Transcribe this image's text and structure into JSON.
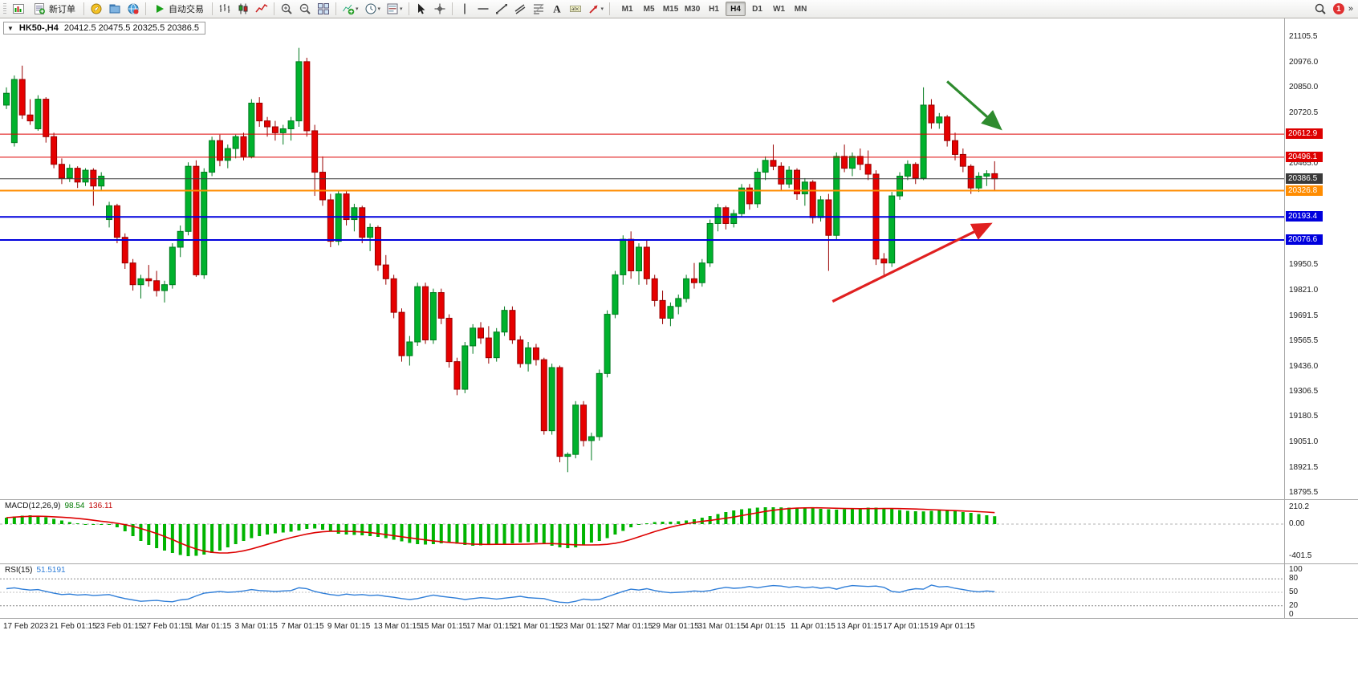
{
  "toolbar": {
    "new_order_label": "新订单",
    "autotrading_label": "自动交易",
    "timeframes": [
      "M1",
      "M5",
      "M15",
      "M30",
      "H1",
      "H4",
      "D1",
      "W1",
      "MN"
    ],
    "active_timeframe": "H4",
    "notification_count": "1",
    "overflow_chevron": "»",
    "icons": [
      "new-chart",
      "new-order",
      "metaeditor-compass",
      "profiles",
      "community-globe",
      "autotrading-play",
      "bar-chart",
      "candlestick-chart",
      "line-chart",
      "zoom-in",
      "zoom-out",
      "tile-windows",
      "indicators-list",
      "periods",
      "templates",
      "cursor",
      "crosshair",
      "vertical-line",
      "horizontal-line",
      "trendline",
      "equidistant-channel",
      "fibonacci-retracement",
      "text",
      "text-label",
      "arrow-tools",
      "search",
      "notifications"
    ]
  },
  "chart": {
    "collapse_marker": "▼",
    "symbol_label": "HK50-,H4",
    "ohlc": "20412.5 20475.5 20325.5 20386.5",
    "price_axis_ticks": [
      "21105.5",
      "20976.0",
      "20850.0",
      "20720.5",
      "20465.0",
      "19950.5",
      "19821.0",
      "19691.5",
      "19565.5",
      "19436.0",
      "19306.5",
      "19180.5",
      "19051.0",
      "18921.5",
      "18795.5"
    ],
    "lines": [
      {
        "label": "20612.9",
        "price": 20612.9,
        "color": "#dd0000",
        "width": 1
      },
      {
        "label": "20496.1",
        "price": 20496.1,
        "color": "#dd0000",
        "width": 1
      },
      {
        "label": "20386.5",
        "price": 20386.5,
        "color": "#3a3a3a",
        "width": 1
      },
      {
        "label": "20326.8",
        "price": 20326.8,
        "color": "#ff8c00",
        "width": 2
      },
      {
        "label": "20193.4",
        "price": 20193.4,
        "color": "#0000dd",
        "width": 2
      },
      {
        "label": "20076.6",
        "price": 20076.6,
        "color": "#0000dd",
        "width": 2
      }
    ],
    "arrows": [
      {
        "name": "green-resistance-arrow",
        "color": "#2e8b2e",
        "from": {
          "i": 119.0,
          "p": 20880
        },
        "to": {
          "i": 125.6,
          "p": 20645
        }
      },
      {
        "name": "red-trend-arrow",
        "color": "#e02020",
        "from": {
          "i": 104.5,
          "p": 19765
        },
        "to": {
          "i": 124.3,
          "p": 20155
        }
      }
    ],
    "candles": [
      [
        20760,
        20850,
        20740,
        20820
      ],
      [
        20570,
        20910,
        20550,
        20890
      ],
      [
        20890,
        20960,
        20690,
        20710
      ],
      [
        20710,
        20790,
        20660,
        20680
      ],
      [
        20640,
        20810,
        20630,
        20790
      ],
      [
        20790,
        20800,
        20570,
        20600
      ],
      [
        20600,
        20620,
        20440,
        20460
      ],
      [
        20460,
        20490,
        20360,
        20390
      ],
      [
        20390,
        20460,
        20370,
        20440
      ],
      [
        20440,
        20450,
        20340,
        20370
      ],
      [
        20370,
        20440,
        20350,
        20430
      ],
      [
        20430,
        20440,
        20250,
        20350
      ],
      [
        20350,
        20420,
        20330,
        20400
      ],
      [
        20180,
        20270,
        20140,
        20250
      ],
      [
        20250,
        20260,
        20060,
        20090
      ],
      [
        20090,
        20110,
        19930,
        19960
      ],
      [
        19960,
        19980,
        19820,
        19850
      ],
      [
        19850,
        19900,
        19780,
        19880
      ],
      [
        19880,
        19950,
        19840,
        19870
      ],
      [
        19870,
        19920,
        19790,
        19820
      ],
      [
        19820,
        19870,
        19760,
        19850
      ],
      [
        19850,
        20060,
        19830,
        20040
      ],
      [
        20040,
        20150,
        19990,
        20120
      ],
      [
        20120,
        20470,
        20100,
        20450
      ],
      [
        20450,
        20480,
        19890,
        19900
      ],
      [
        19900,
        20440,
        19880,
        20420
      ],
      [
        20420,
        20600,
        20400,
        20580
      ],
      [
        20580,
        20610,
        20450,
        20480
      ],
      [
        20480,
        20560,
        20440,
        20540
      ],
      [
        20540,
        20610,
        20490,
        20600
      ],
      [
        20600,
        20620,
        20480,
        20500
      ],
      [
        20500,
        20790,
        20490,
        20770
      ],
      [
        20770,
        20800,
        20650,
        20680
      ],
      [
        20680,
        20700,
        20600,
        20650
      ],
      [
        20650,
        20680,
        20580,
        20620
      ],
      [
        20620,
        20660,
        20560,
        20640
      ],
      [
        20640,
        20700,
        20580,
        20680
      ],
      [
        20680,
        21050,
        20650,
        20980
      ],
      [
        20980,
        21000,
        20600,
        20630
      ],
      [
        20630,
        20660,
        20300,
        20420
      ],
      [
        20420,
        20500,
        20250,
        20280
      ],
      [
        20280,
        20310,
        20040,
        20070
      ],
      [
        20070,
        20330,
        20050,
        20310
      ],
      [
        20310,
        20330,
        20150,
        20180
      ],
      [
        20180,
        20260,
        20120,
        20240
      ],
      [
        20240,
        20250,
        20060,
        20090
      ],
      [
        20090,
        20160,
        20020,
        20140
      ],
      [
        20140,
        20150,
        19920,
        19950
      ],
      [
        19950,
        20000,
        19850,
        19880
      ],
      [
        19880,
        19900,
        19680,
        19710
      ],
      [
        19710,
        19730,
        19460,
        19490
      ],
      [
        19490,
        19590,
        19440,
        19560
      ],
      [
        19560,
        19860,
        19540,
        19840
      ],
      [
        19840,
        19860,
        19550,
        19570
      ],
      [
        19570,
        19830,
        19550,
        19810
      ],
      [
        19810,
        19830,
        19650,
        19680
      ],
      [
        19680,
        19700,
        19430,
        19460
      ],
      [
        19460,
        19480,
        19290,
        19320
      ],
      [
        19320,
        19560,
        19300,
        19540
      ],
      [
        19540,
        19650,
        19500,
        19630
      ],
      [
        19630,
        19660,
        19550,
        19580
      ],
      [
        19580,
        19640,
        19450,
        19480
      ],
      [
        19480,
        19630,
        19460,
        19610
      ],
      [
        19610,
        19740,
        19590,
        19720
      ],
      [
        19720,
        19740,
        19550,
        19570
      ],
      [
        19570,
        19590,
        19430,
        19450
      ],
      [
        19450,
        19560,
        19410,
        19530
      ],
      [
        19530,
        19550,
        19440,
        19470
      ],
      [
        19470,
        19480,
        19090,
        19110
      ],
      [
        19110,
        19450,
        19090,
        19430
      ],
      [
        19430,
        19440,
        18950,
        18980
      ],
      [
        18980,
        19000,
        18900,
        18990
      ],
      [
        18990,
        19260,
        18970,
        19240
      ],
      [
        19240,
        19260,
        19030,
        19060
      ],
      [
        19060,
        19100,
        18960,
        19080
      ],
      [
        19080,
        19420,
        19060,
        19400
      ],
      [
        19400,
        19720,
        19380,
        19700
      ],
      [
        19700,
        19920,
        19680,
        19900
      ],
      [
        19900,
        20100,
        19850,
        20080
      ],
      [
        20080,
        20120,
        19880,
        19920
      ],
      [
        19920,
        20060,
        19850,
        20040
      ],
      [
        20040,
        20080,
        19850,
        19880
      ],
      [
        19880,
        19900,
        19740,
        19770
      ],
      [
        19770,
        19820,
        19650,
        19680
      ],
      [
        19680,
        19760,
        19640,
        19740
      ],
      [
        19740,
        19800,
        19700,
        19780
      ],
      [
        19780,
        19900,
        19760,
        19880
      ],
      [
        19880,
        19960,
        19830,
        19860
      ],
      [
        19860,
        19980,
        19840,
        19960
      ],
      [
        19960,
        20180,
        19940,
        20160
      ],
      [
        20160,
        20260,
        20120,
        20240
      ],
      [
        20240,
        20250,
        20130,
        20160
      ],
      [
        20160,
        20230,
        20140,
        20210
      ],
      [
        20210,
        20360,
        20190,
        20340
      ],
      [
        20340,
        20360,
        20230,
        20260
      ],
      [
        20260,
        20440,
        20240,
        20420
      ],
      [
        20420,
        20500,
        20380,
        20480
      ],
      [
        20480,
        20560,
        20430,
        20450
      ],
      [
        20450,
        20470,
        20330,
        20360
      ],
      [
        20360,
        20450,
        20340,
        20430
      ],
      [
        20430,
        20440,
        20280,
        20310
      ],
      [
        20310,
        20390,
        20250,
        20370
      ],
      [
        20370,
        20380,
        20160,
        20190
      ],
      [
        20190,
        20300,
        20170,
        20280
      ],
      [
        20280,
        20310,
        19920,
        20100
      ],
      [
        20100,
        20520,
        20080,
        20500
      ],
      [
        20500,
        20560,
        20420,
        20440
      ],
      [
        20440,
        20520,
        20400,
        20500
      ],
      [
        20500,
        20540,
        20430,
        20460
      ],
      [
        20460,
        20530,
        20380,
        20410
      ],
      [
        20410,
        20430,
        19950,
        19980
      ],
      [
        19980,
        20010,
        19900,
        19960
      ],
      [
        19960,
        20320,
        19940,
        20300
      ],
      [
        20300,
        20420,
        20280,
        20400
      ],
      [
        20400,
        20480,
        20380,
        20460
      ],
      [
        20460,
        20470,
        20360,
        20390
      ],
      [
        20390,
        20850,
        20380,
        20760
      ],
      [
        20760,
        20790,
        20640,
        20670
      ],
      [
        20670,
        20720,
        20640,
        20700
      ],
      [
        20700,
        20710,
        20550,
        20580
      ],
      [
        20580,
        20620,
        20480,
        20510
      ],
      [
        20510,
        20540,
        20420,
        20450
      ],
      [
        20450,
        20460,
        20310,
        20340
      ],
      [
        20340,
        20420,
        20320,
        20400
      ],
      [
        20400,
        20430,
        20350,
        20412
      ],
      [
        20412.5,
        20475.5,
        20325.5,
        20386.5
      ]
    ]
  },
  "macd": {
    "name": "MACD(12,26,9)",
    "value_main": "98.54",
    "value_signal": "136.11",
    "ticks": [
      "210.2",
      "0.00",
      "-401.5"
    ],
    "histogram": [
      80,
      95,
      105,
      110,
      100,
      85,
      65,
      45,
      25,
      10,
      0,
      -10,
      -5,
      0,
      -40,
      -90,
      -150,
      -210,
      -260,
      -300,
      -330,
      -360,
      -385,
      -400,
      -395,
      -380,
      -360,
      -330,
      -290,
      -250,
      -210,
      -175,
      -150,
      -130,
      -115,
      -105,
      -95,
      -80,
      -60,
      -55,
      -70,
      -95,
      -120,
      -130,
      -135,
      -140,
      -150,
      -160,
      -175,
      -195,
      -215,
      -235,
      -250,
      -255,
      -250,
      -240,
      -235,
      -245,
      -260,
      -270,
      -265,
      -255,
      -250,
      -245,
      -240,
      -230,
      -225,
      -230,
      -245,
      -270,
      -290,
      -300,
      -290,
      -260,
      -230,
      -210,
      -175,
      -130,
      -85,
      -40,
      -10,
      10,
      25,
      30,
      30,
      35,
      45,
      60,
      80,
      100,
      125,
      150,
      170,
      185,
      195,
      205,
      210,
      210,
      208,
      205,
      200,
      198,
      195,
      190,
      185,
      180,
      185,
      195,
      200,
      205,
      205,
      200,
      190,
      175,
      165,
      160,
      158,
      165,
      170,
      168,
      160,
      150,
      140,
      125,
      110,
      98
    ]
  },
  "rsi": {
    "name": "RSI(15)",
    "value": "51.5191",
    "ticks": [
      "100",
      "80",
      "50",
      "20",
      "0"
    ],
    "levels": [
      80,
      50,
      20
    ],
    "values": [
      58,
      60,
      57,
      55,
      56,
      52,
      48,
      45,
      46,
      44,
      45,
      43,
      44,
      45,
      40,
      36,
      33,
      30,
      31,
      32,
      30,
      29,
      33,
      35,
      42,
      48,
      50,
      52,
      50,
      51,
      53,
      56,
      54,
      53,
      52,
      53,
      54,
      60,
      58,
      52,
      48,
      45,
      43,
      46,
      44,
      45,
      43,
      44,
      41,
      39,
      36,
      34,
      36,
      40,
      44,
      41,
      39,
      37,
      34,
      36,
      38,
      37,
      35,
      37,
      39,
      41,
      38,
      37,
      36,
      31,
      28,
      27,
      30,
      35,
      33,
      34,
      40,
      46,
      52,
      57,
      55,
      58,
      54,
      51,
      49,
      50,
      51,
      53,
      52,
      54,
      58,
      61,
      59,
      60,
      63,
      60,
      63,
      65,
      64,
      61,
      63,
      60,
      62,
      59,
      61,
      57,
      62,
      65,
      64,
      63,
      64,
      61,
      52,
      50,
      55,
      58,
      57,
      66,
      62,
      63,
      59,
      56,
      53,
      51,
      53,
      51.5
    ]
  },
  "time_axis": [
    "17 Feb 2023",
    "21 Feb 01:15",
    "23 Feb 01:15",
    "27 Feb 01:15",
    "1 Mar 01:15",
    "3 Mar 01:15",
    "7 Mar 01:15",
    "9 Mar 01:15",
    "13 Mar 01:15",
    "15 Mar 01:15",
    "17 Mar 01:15",
    "21 Mar 01:15",
    "23 Mar 01:15",
    "27 Mar 01:15",
    "29 Mar 01:15",
    "31 Mar 01:15",
    "4 Apr 01:15",
    "11 Apr 01:15",
    "13 Apr 01:15",
    "17 Apr 01:15",
    "19 Apr 01:15"
  ]
}
